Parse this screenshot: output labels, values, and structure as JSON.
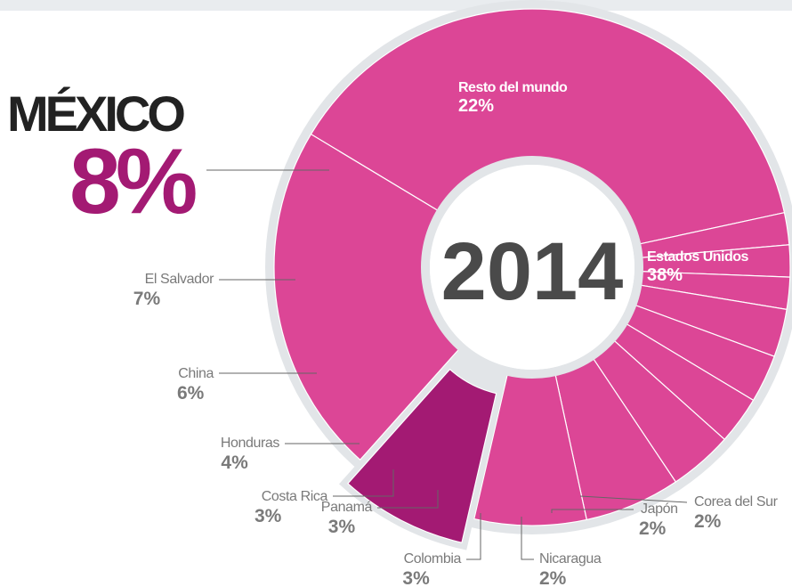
{
  "chart_data": {
    "type": "pie",
    "variant": "donut",
    "center_label": "2014",
    "colors": {
      "slice": "#dc4696",
      "highlight": "#a31a73",
      "separator": "#ffffff",
      "ring": "#e2e5e8",
      "text_dark": "#4a4a4a",
      "text_gray": "#7a7a7a",
      "leader": "#666666"
    },
    "slices": [
      {
        "name": "Estados Unidos",
        "value": 38,
        "value_label": "38%"
      },
      {
        "name": "Corea del Sur",
        "value": 2,
        "value_label": "2%"
      },
      {
        "name": "Japón",
        "value": 2,
        "value_label": "2%"
      },
      {
        "name": "Nicaragua",
        "value": 2,
        "value_label": "2%"
      },
      {
        "name": "Colombia",
        "value": 3,
        "value_label": "3%"
      },
      {
        "name": "Panamá",
        "value": 3,
        "value_label": "3%"
      },
      {
        "name": "Costa Rica",
        "value": 3,
        "value_label": "3%"
      },
      {
        "name": "Honduras",
        "value": 4,
        "value_label": "4%"
      },
      {
        "name": "China",
        "value": 6,
        "value_label": "6%"
      },
      {
        "name": "El Salvador",
        "value": 7,
        "value_label": "7%"
      },
      {
        "name": "MÉXICO",
        "value": 8,
        "value_label": "8%",
        "highlight": true
      },
      {
        "name": "Resto del mundo",
        "value": 22,
        "value_label": "22%"
      }
    ]
  }
}
